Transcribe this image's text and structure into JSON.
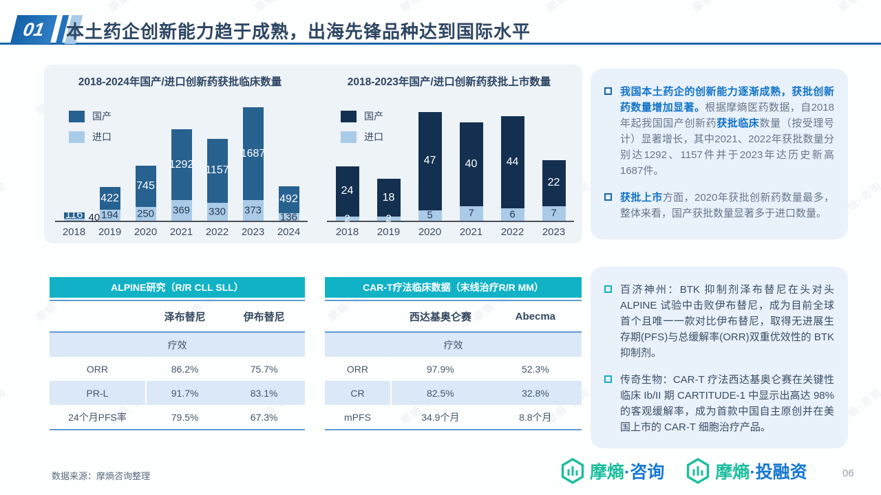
{
  "header": {
    "section_number": "01",
    "title": "本土药企创新能力趋于成熟，出海先锋品种达到国际水平"
  },
  "watermark": {
    "text": "摩熵·咨询"
  },
  "chart_data": [
    {
      "type": "bar",
      "stacked": true,
      "title": "2018-2024年国产/进口创新药获批临床数量",
      "categories": [
        "2018",
        "2019",
        "2020",
        "2021",
        "2022",
        "2023",
        "2024"
      ],
      "series": [
        {
          "name": "国产",
          "color": "#27618F",
          "values": [
            116,
            422,
            745,
            1292,
            1157,
            1687,
            492
          ]
        },
        {
          "name": "进口",
          "color": "#A9CBE8",
          "values": [
            40,
            194,
            250,
            369,
            330,
            373,
            136
          ]
        }
      ],
      "legend_position": "top-left",
      "grid": false,
      "ylim": [
        0,
        2100
      ]
    },
    {
      "type": "bar",
      "stacked": true,
      "title": "2018-2023年国产/进口创新药获批上市数量",
      "categories": [
        "2018",
        "2019",
        "2020",
        "2021",
        "2022",
        "2023"
      ],
      "series": [
        {
          "name": "国产",
          "color": "#143050",
          "values": [
            24,
            18,
            47,
            40,
            44,
            22
          ]
        },
        {
          "name": "进口",
          "color": "#A9CBE8",
          "values": [
            2,
            2,
            5,
            7,
            6,
            7
          ]
        }
      ],
      "legend_position": "top-left",
      "grid": false,
      "ylim": [
        0,
        55
      ]
    }
  ],
  "top_notes": {
    "bullets": [
      {
        "segments": [
          {
            "style": "em",
            "text": "我国本土药企的创新能力逐渐成熟，获批创新药数量增加显著。"
          },
          {
            "style": "normal",
            "text": "根据摩熵医药数据，自2018年起我国国产创新药"
          },
          {
            "style": "em",
            "text": "获批临床"
          },
          {
            "style": "normal",
            "text": "数量（按受理号计）显著增长，其中2021、2022年获批数量分别达1292、1157件并于2023年达历史新高1687件。"
          }
        ]
      },
      {
        "segments": [
          {
            "style": "em",
            "text": "获批上市"
          },
          {
            "style": "normal",
            "text": "方面，2020年获批创新药数量最多，整体来看，国产获批数量显著多于进口数量。"
          }
        ]
      }
    ]
  },
  "tables": [
    {
      "title": "ALPINE研究（R/R CLL SLL）",
      "columns": [
        "",
        "泽布替尼",
        "伊布替尼"
      ],
      "section_row": "疗效",
      "rows": [
        [
          "ORR",
          "86.2%",
          "75.7%"
        ],
        [
          "PR-L",
          "91.7%",
          "83.1%"
        ],
        [
          "24个月PFS率",
          "79.5%",
          "67.3%"
        ]
      ]
    },
    {
      "title": "CAR-T疗法临床数据（末线治疗R/R MM）",
      "columns": [
        "",
        "西达基奥仑赛",
        "Abecma"
      ],
      "section_row": "疗效",
      "rows": [
        [
          "ORR",
          "97.9%",
          "52.3%"
        ],
        [
          "CR",
          "82.5%",
          "32.8%"
        ],
        [
          "mPFS",
          "34.9个月",
          "8.8个月"
        ]
      ]
    }
  ],
  "bottom_notes": {
    "bullets": [
      {
        "segments": [
          {
            "style": "normal",
            "text": "百济神州：BTK 抑制剂泽布替尼在头对头 ALPINE 试验中击败伊布替尼，成为目前全球首个且唯一一款对比伊布替尼，取得无进展生存期(PFS)与总缓解率(ORR)双重优效性的 BTK 抑制剂。"
          }
        ]
      },
      {
        "segments": [
          {
            "style": "normal",
            "text": "传奇生物：CAR-T 疗法西达基奥仑赛在关键性临床 Ib/II 期 CARTITUDE-1 中显示出高达 98% 的客观缓解率，成为首款中国自主原创并在美国上市的 CAR-T 细胞治疗产品。"
          }
        ]
      }
    ]
  },
  "footer": {
    "source": "数据来源：摩熵咨询整理",
    "logos": [
      {
        "prefix": "摩熵",
        "suffix": "·咨询"
      },
      {
        "prefix": "摩熵",
        "suffix": "·投融资"
      }
    ],
    "page_number": "06"
  },
  "colors": {
    "accent_blue": "#1565AD",
    "teal_header": "#12B2C6",
    "domestic_clinical": "#27618F",
    "domestic_market": "#143050",
    "imported": "#A9CBE8",
    "logo_green": "#1CBE9E",
    "logo_blue": "#1778D2"
  }
}
